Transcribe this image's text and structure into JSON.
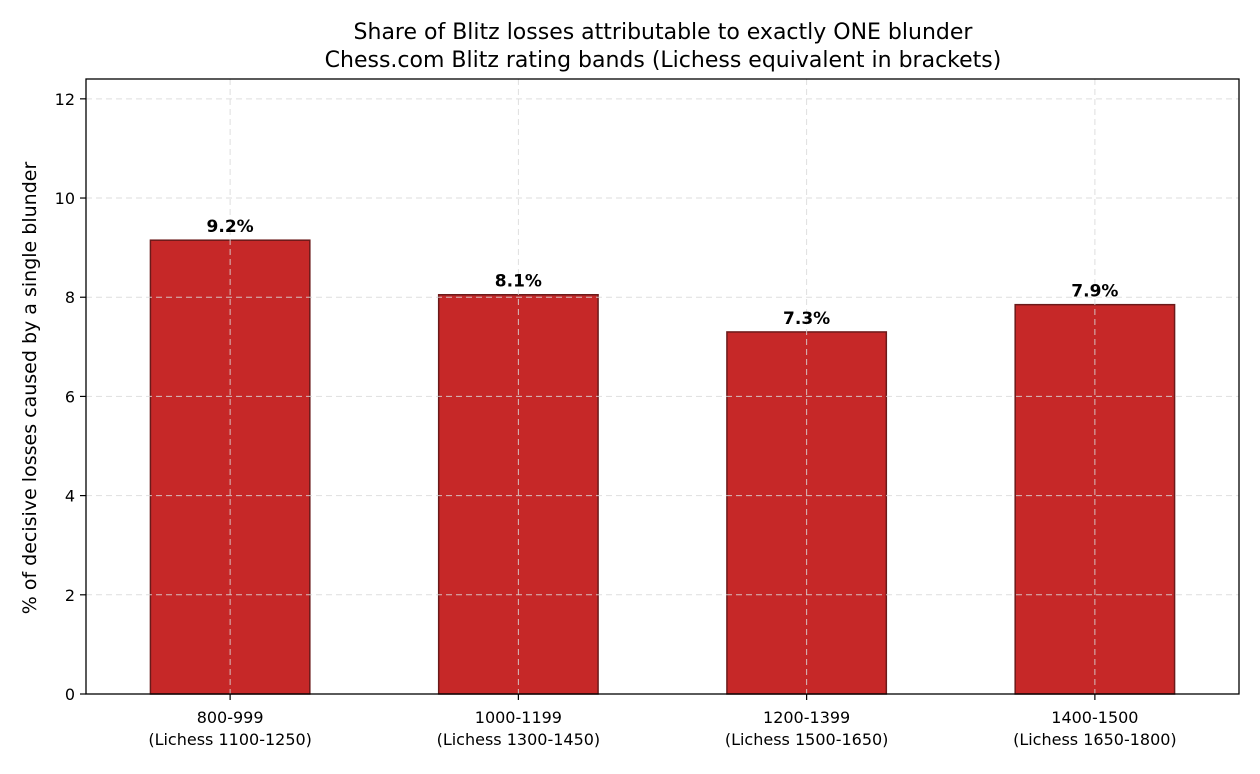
{
  "chart_data": {
    "type": "bar",
    "title": "Share of Blitz losses attributable to exactly ONE blunder",
    "subtitle": "Chess.com Blitz rating bands (Lichess equivalent in brackets)",
    "xlabel": "",
    "ylabel": "% of decisive losses caused by a single blunder",
    "categories": [
      [
        "800-999",
        "(Lichess 1100-1250)"
      ],
      [
        "1000-1199",
        "(Lichess 1300-1450)"
      ],
      [
        "1200-1399",
        "(Lichess 1500-1650)"
      ],
      [
        "1400-1500",
        "(Lichess 1650-1800)"
      ]
    ],
    "values": [
      9.15,
      8.05,
      7.3,
      7.85
    ],
    "data_labels": [
      "9.2%",
      "8.1%",
      "7.3%",
      "7.9%"
    ],
    "ylim": [
      0,
      12.4
    ],
    "yticks": [
      0,
      2,
      4,
      6,
      8,
      10,
      12
    ],
    "grid": true,
    "legend": "none",
    "colors": {
      "bar_fill": "#c62828",
      "bar_edge": "#6b1a1a",
      "grid": "#d9d9d9",
      "axis": "#000000",
      "text": "#000000"
    }
  }
}
